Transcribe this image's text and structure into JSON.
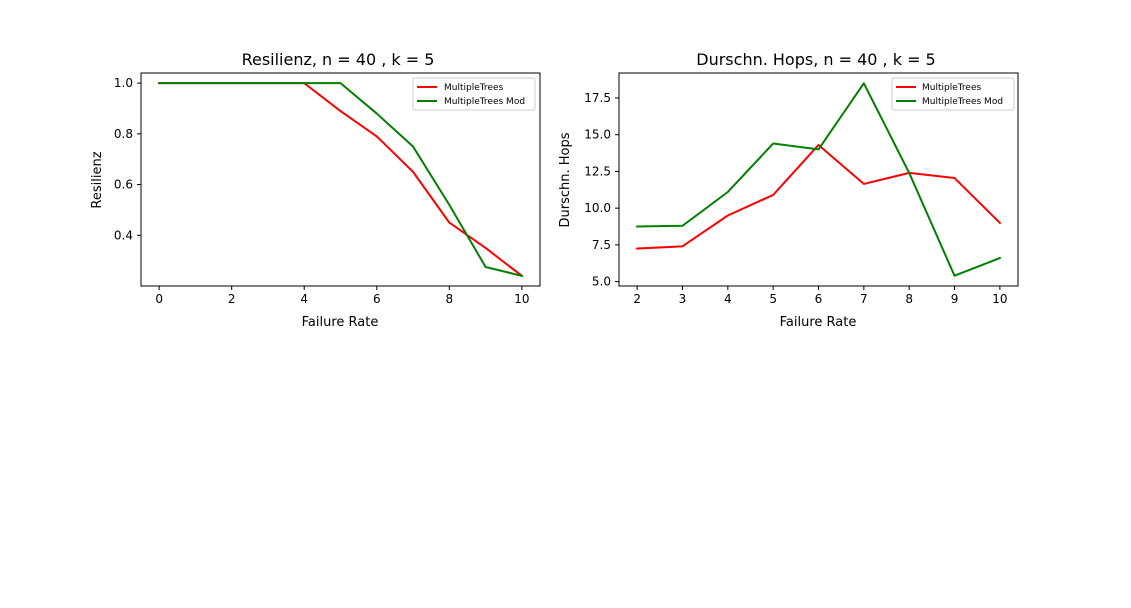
{
  "chart_data": [
    {
      "type": "line",
      "title": "Resilienz, n = 40 , k = 5",
      "xlabel": "Failure Rate",
      "ylabel": "Resilienz",
      "x": [
        0,
        1,
        2,
        3,
        4,
        5,
        6,
        7,
        8,
        9,
        10
      ],
      "xlim": [
        -0.5,
        10.5
      ],
      "ylim": [
        0.2,
        1.04
      ],
      "xticks": [
        0,
        2,
        4,
        6,
        8,
        10
      ],
      "yticks": [
        0.4,
        0.6,
        0.8,
        1.0
      ],
      "xtick_labels": [
        "0",
        "2",
        "4",
        "6",
        "8",
        "10"
      ],
      "ytick_labels": [
        "0.4",
        "0.6",
        "0.8",
        "1.0"
      ],
      "grid": false,
      "legend_position": "top-right",
      "series": [
        {
          "name": "MultipleTrees",
          "color": "#ff0000",
          "values": [
            1.0,
            1.0,
            1.0,
            1.0,
            1.0,
            0.89,
            0.79,
            0.65,
            0.45,
            0.35,
            0.24
          ]
        },
        {
          "name": "MultipleTrees Mod",
          "color": "#008000",
          "values": [
            1.0,
            1.0,
            1.0,
            1.0,
            1.0,
            1.0,
            0.88,
            0.75,
            0.52,
            0.275,
            0.24
          ]
        }
      ]
    },
    {
      "type": "line",
      "title": "Durschn. Hops, n = 40 , k = 5",
      "xlabel": "Failure Rate",
      "ylabel": "Durschn. Hops",
      "x": [
        2,
        3,
        4,
        5,
        6,
        7,
        8,
        9,
        10
      ],
      "xlim": [
        1.6,
        10.4
      ],
      "ylim": [
        4.7,
        19.2
      ],
      "xticks": [
        2,
        3,
        4,
        5,
        6,
        7,
        8,
        9,
        10
      ],
      "yticks": [
        5.0,
        7.5,
        10.0,
        12.5,
        15.0,
        17.5
      ],
      "xtick_labels": [
        "2",
        "3",
        "4",
        "5",
        "6",
        "7",
        "8",
        "9",
        "10"
      ],
      "ytick_labels": [
        "5.0",
        "7.5",
        "10.0",
        "12.5",
        "15.0",
        "17.5"
      ],
      "grid": false,
      "legend_position": "top-right",
      "series": [
        {
          "name": "MultipleTrees",
          "color": "#ff0000",
          "values": [
            7.25,
            7.4,
            9.5,
            10.9,
            14.3,
            11.65,
            12.4,
            12.05,
            9.0
          ]
        },
        {
          "name": "MultipleTrees Mod",
          "color": "#008000",
          "values": [
            8.75,
            8.8,
            11.1,
            14.4,
            14.0,
            18.5,
            12.4,
            5.4,
            6.6
          ]
        }
      ]
    }
  ]
}
